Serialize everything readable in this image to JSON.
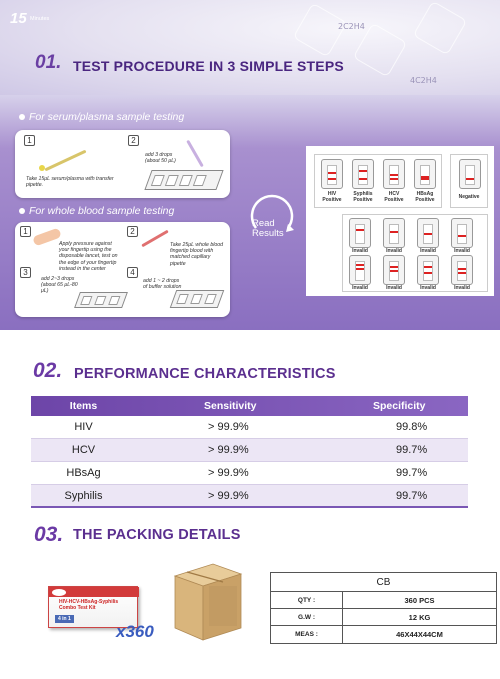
{
  "section1": {
    "number": "01.",
    "title": "TEST PROCEDURE IN 3 SIMPLE STEPS",
    "bg_chem": [
      "2C2H4",
      "4C2H4"
    ],
    "serum_label": "For serum/plasma sample testing",
    "blood_label": "For whole blood sample testing",
    "serum_steps": [
      {
        "num": "1",
        "text": "Take 15μL serum/plasma with transfer pipette."
      },
      {
        "num": "2",
        "text": "add 3 drops (about 50 μL)"
      }
    ],
    "blood_steps": [
      {
        "num": "1",
        "text": "Apply pressure against your fingertip using the disposable lancet, test on the edge of your fingertip instead in the center"
      },
      {
        "num": "2",
        "text": "Take 25μL whole blood fingertip blood with matched capillary pipette"
      },
      {
        "num": "3",
        "text": "add 2~3 drops (about 65 μL-80 μL)"
      },
      {
        "num": "4",
        "text": "add 1 ~ 2 drops of buffer solution"
      }
    ],
    "timer": {
      "value": "15",
      "unit": "Minutes",
      "read": "Read",
      "results": "Results"
    },
    "positive_results": [
      {
        "label": "HIV",
        "sub": "Positive"
      },
      {
        "label": "Syphilis",
        "sub": "Positive"
      },
      {
        "label": "HCV",
        "sub": "Positive"
      },
      {
        "label": "HBsAg",
        "sub": "Positive"
      }
    ],
    "negative_label": "Negative",
    "invalid_label": "Invalid"
  },
  "section2": {
    "number": "02.",
    "title": "PERFORMANCE CHARACTERISTICS",
    "headers": {
      "items": "Items",
      "sensitivity": "Sensitivity",
      "specificity": "Specificity"
    },
    "rows": [
      {
        "item": "HIV",
        "sensitivity": "> 99.9%",
        "specificity": "99.8%"
      },
      {
        "item": "HCV",
        "sensitivity": "> 99.9%",
        "specificity": "99.7%"
      },
      {
        "item": "HBsAg",
        "sensitivity": "> 99.9%",
        "specificity": "99.7%"
      },
      {
        "item": "Syphilis",
        "sensitivity": "> 99.9%",
        "specificity": "99.7%"
      }
    ]
  },
  "section3": {
    "number": "03.",
    "title": "THE PACKING DETAILS",
    "kit_box_text": "HIV-HCV-HBsAg-Syphilis Combo Test Kit",
    "kit_box_tag": "4 in 1",
    "multiplier": "x360",
    "pack_header": "CB",
    "pack_rows": [
      {
        "key": "QTY :",
        "value": "360 PCS"
      },
      {
        "key": "G.W :",
        "value": "12 KG"
      },
      {
        "key": "MEAS :",
        "value": "46X44X44CM"
      }
    ]
  },
  "colors": {
    "brand_purple": "#5b2f8f",
    "accent_purple": "#7a57b4",
    "positive_red": "#d22222"
  }
}
